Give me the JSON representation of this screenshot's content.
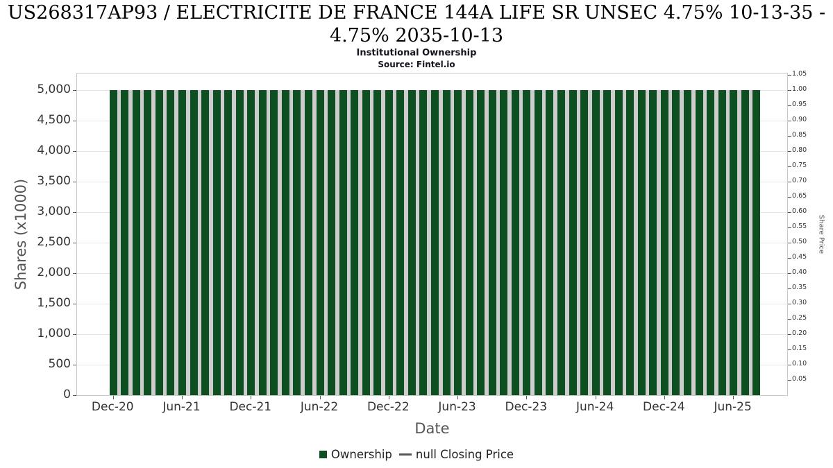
{
  "title_line1": "US268317AP93 / ELECTRICITE DE FRANCE 144A LIFE SR UNSEC 4.75% 10-13-35 -",
  "title_line2": "4.75% 2035-10-13",
  "subtitle": "Institutional Ownership",
  "source": "Source: Fintel.io",
  "left_axis": {
    "label": "Shares (x1000)",
    "ticks": [
      "5,000",
      "4,500",
      "4,000",
      "3,500",
      "3,000",
      "2,500",
      "2,000",
      "1,500",
      "1,000",
      "500",
      "0"
    ]
  },
  "right_axis": {
    "label": "Share Price",
    "ticks": [
      "1.05",
      "1.00",
      "0.95",
      "0.90",
      "0.85",
      "0.80",
      "0.75",
      "0.70",
      "0.65",
      "0.60",
      "0.55",
      "0.50",
      "0.45",
      "0.40",
      "0.35",
      "0.30",
      "0.25",
      "0.20",
      "0.15",
      "0.10",
      "0.05"
    ]
  },
  "x_axis": {
    "label": "Date",
    "ticks": [
      "Dec-20",
      "Jun-21",
      "Dec-21",
      "Jun-22",
      "Dec-22",
      "Jun-23",
      "Dec-23",
      "Jun-24",
      "Dec-24",
      "Jun-25"
    ],
    "tick_indices": [
      0,
      6,
      12,
      18,
      24,
      30,
      36,
      42,
      48,
      54
    ]
  },
  "legend": [
    {
      "label": "Ownership",
      "marker": "square",
      "color": "#0d4f21"
    },
    {
      "label": "null Closing Price",
      "marker": "dash",
      "color": "#555555"
    }
  ],
  "colors": {
    "bar": "#0d4f21",
    "bar_gap": "#cdcdcd",
    "grid": "#e4e4e4",
    "dash": "#555555"
  },
  "chart_data": {
    "type": "bar",
    "title": "US268317AP93 / ELECTRICITE DE FRANCE 144A LIFE SR UNSEC 4.75% 10-13-35 - 4.75% 2035-10-13",
    "subtitle": "Institutional Ownership",
    "xlabel": "Date",
    "ylabel_left": "Shares (x1000)",
    "ylabel_right": "Share Price",
    "ylim_left": [
      0,
      5300
    ],
    "ylim_right": [
      0,
      1.06
    ],
    "grid": true,
    "legend_position": "bottom",
    "x": [
      "Dec-20",
      "Jan-21",
      "Feb-21",
      "Mar-21",
      "Apr-21",
      "May-21",
      "Jun-21",
      "Jul-21",
      "Aug-21",
      "Sep-21",
      "Oct-21",
      "Nov-21",
      "Dec-21",
      "Jan-22",
      "Feb-22",
      "Mar-22",
      "Apr-22",
      "May-22",
      "Jun-22",
      "Jul-22",
      "Aug-22",
      "Sep-22",
      "Oct-22",
      "Nov-22",
      "Dec-22",
      "Jan-23",
      "Feb-23",
      "Mar-23",
      "Apr-23",
      "May-23",
      "Jun-23",
      "Jul-23",
      "Aug-23",
      "Sep-23",
      "Oct-23",
      "Nov-23",
      "Dec-23",
      "Jan-24",
      "Feb-24",
      "Mar-24",
      "Apr-24",
      "May-24",
      "Jun-24",
      "Jul-24",
      "Aug-24",
      "Sep-24",
      "Oct-24",
      "Nov-24",
      "Dec-24",
      "Jan-25",
      "Feb-25",
      "Mar-25",
      "Apr-25",
      "May-25",
      "Jun-25",
      "Jul-25",
      "Aug-25"
    ],
    "series": [
      {
        "name": "Ownership",
        "values": [
          5000,
          5000,
          5000,
          5000,
          5000,
          5000,
          5000,
          5000,
          5000,
          5000,
          5000,
          5000,
          5000,
          5000,
          5000,
          5000,
          5000,
          5000,
          5000,
          5000,
          5000,
          5000,
          5000,
          5000,
          5000,
          5000,
          5000,
          5000,
          5000,
          5000,
          5000,
          5000,
          5000,
          5000,
          5000,
          5000,
          5000,
          5000,
          5000,
          5000,
          5000,
          5000,
          5000,
          5000,
          5000,
          5000,
          5000,
          5000,
          5000,
          5000,
          5000,
          5000,
          5000,
          5000,
          5000,
          5000,
          5000
        ]
      },
      {
        "name": "null Closing Price",
        "values": []
      }
    ]
  }
}
